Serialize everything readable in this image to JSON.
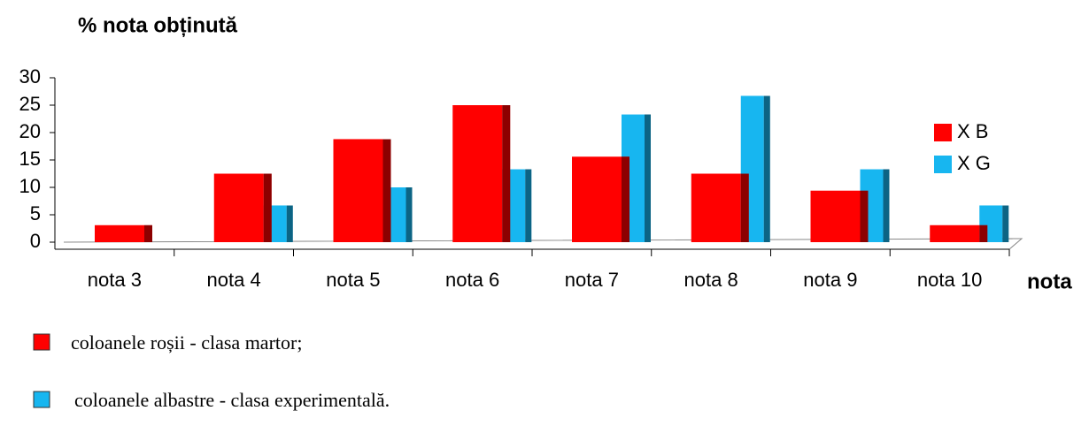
{
  "chart_data": {
    "type": "bar",
    "title": "% nota obținută",
    "x_label": "nota",
    "categories": [
      "nota 3",
      "nota 4",
      "nota 5",
      "nota 6",
      "nota 7",
      "nota 8",
      "nota 9",
      "nota 10"
    ],
    "series": [
      {
        "name": "X B",
        "color": "#ff0000",
        "values": [
          3.1,
          12.5,
          18.8,
          25,
          15.6,
          12.5,
          9.4,
          3.1
        ]
      },
      {
        "name": "X G",
        "color": "#17b6f0",
        "values": [
          0,
          6.7,
          10,
          13.3,
          23.3,
          26.7,
          13.3,
          6.7
        ]
      }
    ],
    "ylim": [
      0,
      30
    ],
    "yticks": [
      0,
      5,
      10,
      15,
      20,
      25,
      30
    ],
    "annotations": [
      "coloanele roșii - clasa martor;",
      "coloanele albastre - clasa experimentală."
    ]
  }
}
